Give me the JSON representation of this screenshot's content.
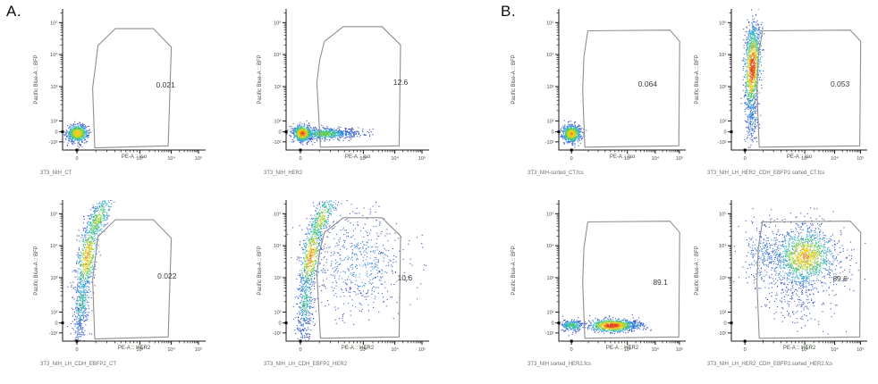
{
  "panels": {
    "a": {
      "label": "A."
    },
    "b": {
      "label": "B."
    }
  },
  "chart_data": {
    "type": "scatter",
    "subtype": "flow-cytometry-pseudocolor-density",
    "x_axis": {
      "scale": "biexponential",
      "ticks": [
        {
          "label": "0",
          "pos": 0.1
        },
        {
          "label": "10³",
          "pos": 0.54
        },
        {
          "label": "10⁴",
          "pos": 0.76
        },
        {
          "label": "10⁵",
          "pos": 0.95
        }
      ]
    },
    "y_axis": {
      "label": "Pacific Blue-A :: BFP",
      "scale": "biexponential",
      "ticks": [
        {
          "label": "-10²",
          "pos": 0.058
        },
        {
          "label": "0",
          "pos": 0.129
        },
        {
          "label": "10²",
          "pos": 0.206
        },
        {
          "label": "10³",
          "pos": 0.45
        },
        {
          "label": "10⁴",
          "pos": 0.677
        },
        {
          "label": "10⁵",
          "pos": 0.903
        }
      ]
    },
    "gates": {
      "a": [
        [
          0.225,
          0.015
        ],
        [
          0.21,
          0.44
        ],
        [
          0.228,
          0.58
        ],
        [
          0.247,
          0.74
        ],
        [
          0.368,
          0.86
        ],
        [
          0.635,
          0.86
        ],
        [
          0.76,
          0.73
        ],
        [
          0.738,
          0.03
        ]
      ],
      "a2": [
        [
          0.24,
          0.02
        ],
        [
          0.215,
          0.48
        ],
        [
          0.235,
          0.64
        ],
        [
          0.268,
          0.77
        ],
        [
          0.4,
          0.875
        ],
        [
          0.67,
          0.875
        ],
        [
          0.8,
          0.745
        ],
        [
          0.79,
          0.03
        ]
      ],
      "b": [
        [
          0.205,
          0.02
        ],
        [
          0.188,
          0.42
        ],
        [
          0.198,
          0.66
        ],
        [
          0.228,
          0.845
        ],
        [
          0.875,
          0.85
        ],
        [
          0.952,
          0.77
        ],
        [
          0.945,
          0.03
        ]
      ]
    },
    "plots": [
      {
        "panel": "A",
        "filename": "3T3_NIH_CT",
        "xlabel": "PE-A :: Iso",
        "ylabel": "Pacific Blue-A :: BFP",
        "gate_percent": "0.021",
        "gate_value": 0.021,
        "gate_shape": "a",
        "gate_label_pos": [
          0.72,
          0.46
        ],
        "populations": [
          {
            "cx": 0.105,
            "cy": 0.118,
            "sx": 0.036,
            "sy": 0.03,
            "rot": 0,
            "n": 800,
            "hot": 0.8
          }
        ]
      },
      {
        "panel": "A",
        "filename": "3T3_NIH_HER2",
        "xlabel": "PE-A :: Iso",
        "ylabel": "Pacific Blue-A :: BFP",
        "gate_percent": "12.6",
        "gate_value": 12.6,
        "gate_shape": "a2",
        "gate_label_pos": [
          0.8,
          0.48
        ],
        "populations": [
          {
            "cx": 0.115,
            "cy": 0.118,
            "sx": 0.032,
            "sy": 0.028,
            "rot": 0,
            "n": 700,
            "hot": 0.92
          },
          {
            "cx": 0.27,
            "cy": 0.115,
            "sx": 0.085,
            "sy": 0.02,
            "rot": 0,
            "n": 550,
            "hot": 0.55
          },
          {
            "cx": 0.44,
            "cy": 0.115,
            "sx": 0.07,
            "sy": 0.018,
            "rot": 0,
            "n": 130,
            "hot": 0.22
          }
        ]
      },
      {
        "panel": "A",
        "filename": "3T3_NIH_LH_CDH_EBFP2_CT",
        "xlabel": "PE-A :: HER2",
        "ylabel": "Pacific Blue-A :: BFP",
        "gate_percent": "0.022",
        "gate_value": 0.022,
        "gate_shape": "a",
        "gate_label_pos": [
          0.73,
          0.46
        ],
        "populations": [
          {
            "cx": 0.135,
            "cy": 0.28,
            "sx": 0.028,
            "sy": 0.12,
            "rot": 4,
            "n": 300,
            "hot": 0.45
          },
          {
            "cx": 0.175,
            "cy": 0.6,
            "sx": 0.032,
            "sy": 0.13,
            "rot": 9,
            "n": 550,
            "hot": 0.82
          },
          {
            "cx": 0.245,
            "cy": 0.86,
            "sx": 0.034,
            "sy": 0.1,
            "rot": 24,
            "n": 350,
            "hot": 0.62
          },
          {
            "cx": 0.125,
            "cy": 0.1,
            "sx": 0.025,
            "sy": 0.09,
            "rot": 0,
            "n": 130,
            "hot": 0.2
          }
        ]
      },
      {
        "panel": "A",
        "filename": "3T3_NIH_LH_CDH_EBFP2_HER2",
        "xlabel": "PE-A :: HER2",
        "ylabel": "Pacific Blue-A :: BFP",
        "gate_percent": "10.6",
        "gate_value": 10.6,
        "gate_shape": "a2",
        "gate_label_pos": [
          0.83,
          0.45
        ],
        "populations": [
          {
            "cx": 0.135,
            "cy": 0.28,
            "sx": 0.028,
            "sy": 0.12,
            "rot": 4,
            "n": 280,
            "hot": 0.45
          },
          {
            "cx": 0.175,
            "cy": 0.6,
            "sx": 0.032,
            "sy": 0.13,
            "rot": 9,
            "n": 500,
            "hot": 0.85
          },
          {
            "cx": 0.245,
            "cy": 0.86,
            "sx": 0.034,
            "sy": 0.1,
            "rot": 24,
            "n": 330,
            "hot": 0.65
          },
          {
            "cx": 0.125,
            "cy": 0.1,
            "sx": 0.025,
            "sy": 0.09,
            "rot": 0,
            "n": 120,
            "hot": 0.2
          },
          {
            "cx": 0.5,
            "cy": 0.55,
            "sx": 0.14,
            "sy": 0.18,
            "rot": 0,
            "n": 450,
            "hot": 0.28
          },
          {
            "cx": 0.52,
            "cy": 0.6,
            "sx": 0.22,
            "sy": 0.24,
            "rot": 0,
            "n": 160,
            "hot": 0.13
          }
        ]
      },
      {
        "panel": "B",
        "filename": "3T3_NIH-sorted_CT.fcs",
        "xlabel": "PE-A :: Iso",
        "ylabel": "Pacific Blue-A :: BFP",
        "gate_percent": "0.064",
        "gate_value": 0.064,
        "gate_shape": "b",
        "gate_label_pos": [
          0.7,
          0.47
        ],
        "populations": [
          {
            "cx": 0.1,
            "cy": 0.115,
            "sx": 0.036,
            "sy": 0.03,
            "rot": 0,
            "n": 800,
            "hot": 0.82
          }
        ]
      },
      {
        "panel": "B",
        "filename": "3T3_NIH_LH_HER2_CDH_EBFP2 sorted_CT.fcs",
        "xlabel": "PE-A :: Iso",
        "ylabel": "Pacific Blue-A :: BFP",
        "gate_percent": "0.053",
        "gate_value": 0.053,
        "gate_shape": "b",
        "gate_label_pos": [
          0.8,
          0.47
        ],
        "populations": [
          {
            "cx": 0.155,
            "cy": 0.58,
            "sx": 0.028,
            "sy": 0.145,
            "rot": 3,
            "n": 1000,
            "hot": 1.0
          },
          {
            "cx": 0.15,
            "cy": 0.24,
            "sx": 0.022,
            "sy": 0.1,
            "rot": 0,
            "n": 220,
            "hot": 0.3
          },
          {
            "cx": 0.16,
            "cy": 0.8,
            "sx": 0.03,
            "sy": 0.06,
            "rot": 6,
            "n": 150,
            "hot": 0.4
          }
        ]
      },
      {
        "panel": "B",
        "filename": "3T3_NIH sorted_HER2.fcs",
        "xlabel": "PE-A :: HER2",
        "ylabel": "Pacific Blue-A :: BFP",
        "gate_percent": "89.1",
        "gate_value": 89.1,
        "gate_shape": "b",
        "gate_label_pos": [
          0.8,
          0.42
        ],
        "populations": [
          {
            "cx": 0.42,
            "cy": 0.11,
            "sx": 0.085,
            "sy": 0.022,
            "rot": 0,
            "n": 900,
            "hot": 1.0
          },
          {
            "cx": 0.105,
            "cy": 0.11,
            "sx": 0.045,
            "sy": 0.02,
            "rot": 0,
            "n": 300,
            "hot": 0.5
          },
          {
            "cx": 0.6,
            "cy": 0.11,
            "sx": 0.05,
            "sy": 0.018,
            "rot": 0,
            "n": 130,
            "hot": 0.3
          }
        ]
      },
      {
        "panel": "B",
        "filename": "3T3_NIH_LH_HER2_CDH_EBFP2.sorted_HER2.fcs",
        "xlabel": "PE-A :: HER2",
        "ylabel": "Pacific Blue-A :: BFP",
        "gate_percent": "89.6",
        "gate_value": 89.6,
        "gate_shape": "b",
        "gate_label_pos": [
          0.8,
          0.44
        ],
        "populations": [
          {
            "cx": 0.54,
            "cy": 0.6,
            "sx": 0.105,
            "sy": 0.095,
            "rot": 0,
            "n": 1100,
            "hot": 0.82
          },
          {
            "cx": 0.5,
            "cy": 0.56,
            "sx": 0.19,
            "sy": 0.16,
            "rot": 0,
            "n": 550,
            "hot": 0.28
          },
          {
            "cx": 0.23,
            "cy": 0.62,
            "sx": 0.07,
            "sy": 0.1,
            "rot": 0,
            "n": 200,
            "hot": 0.28
          },
          {
            "cx": 0.47,
            "cy": 0.28,
            "sx": 0.11,
            "sy": 0.09,
            "rot": 0,
            "n": 110,
            "hot": 0.13
          }
        ]
      }
    ]
  }
}
